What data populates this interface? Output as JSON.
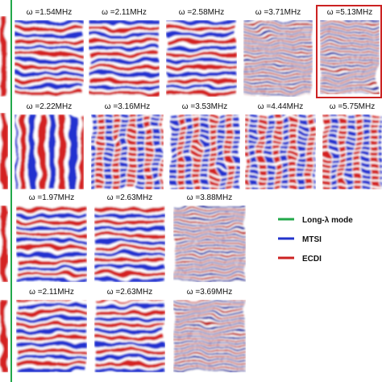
{
  "panels": [
    {
      "label": "ω =1.54MHz"
    },
    {
      "label": "ω =2.11MHz"
    },
    {
      "label": "ω =2.58MHz"
    },
    {
      "label": "ω =3.71MHz"
    },
    {
      "label": "ω =5.13MHz"
    },
    {
      "label": "ω =2.22MHz"
    },
    {
      "label": "ω =3.16MHz"
    },
    {
      "label": "ω =3.53MHz"
    },
    {
      "label": "ω =4.44MHz"
    },
    {
      "label": "ω =5.75MHz"
    },
    {
      "label": "ω =1.97MHz"
    },
    {
      "label": "ω =2.63MHz"
    },
    {
      "label": "ω =3.88MHz"
    },
    {
      "label": "ω =2.11MHz"
    },
    {
      "label": "ω =2.63MHz"
    },
    {
      "label": "ω =3.69MHz"
    }
  ],
  "legend": [
    {
      "label": "Long-λ mode",
      "color": "#22a84a"
    },
    {
      "label": "MTSI",
      "color": "#2233cc"
    },
    {
      "label": "ECDI",
      "color": "#cc2222"
    }
  ]
}
